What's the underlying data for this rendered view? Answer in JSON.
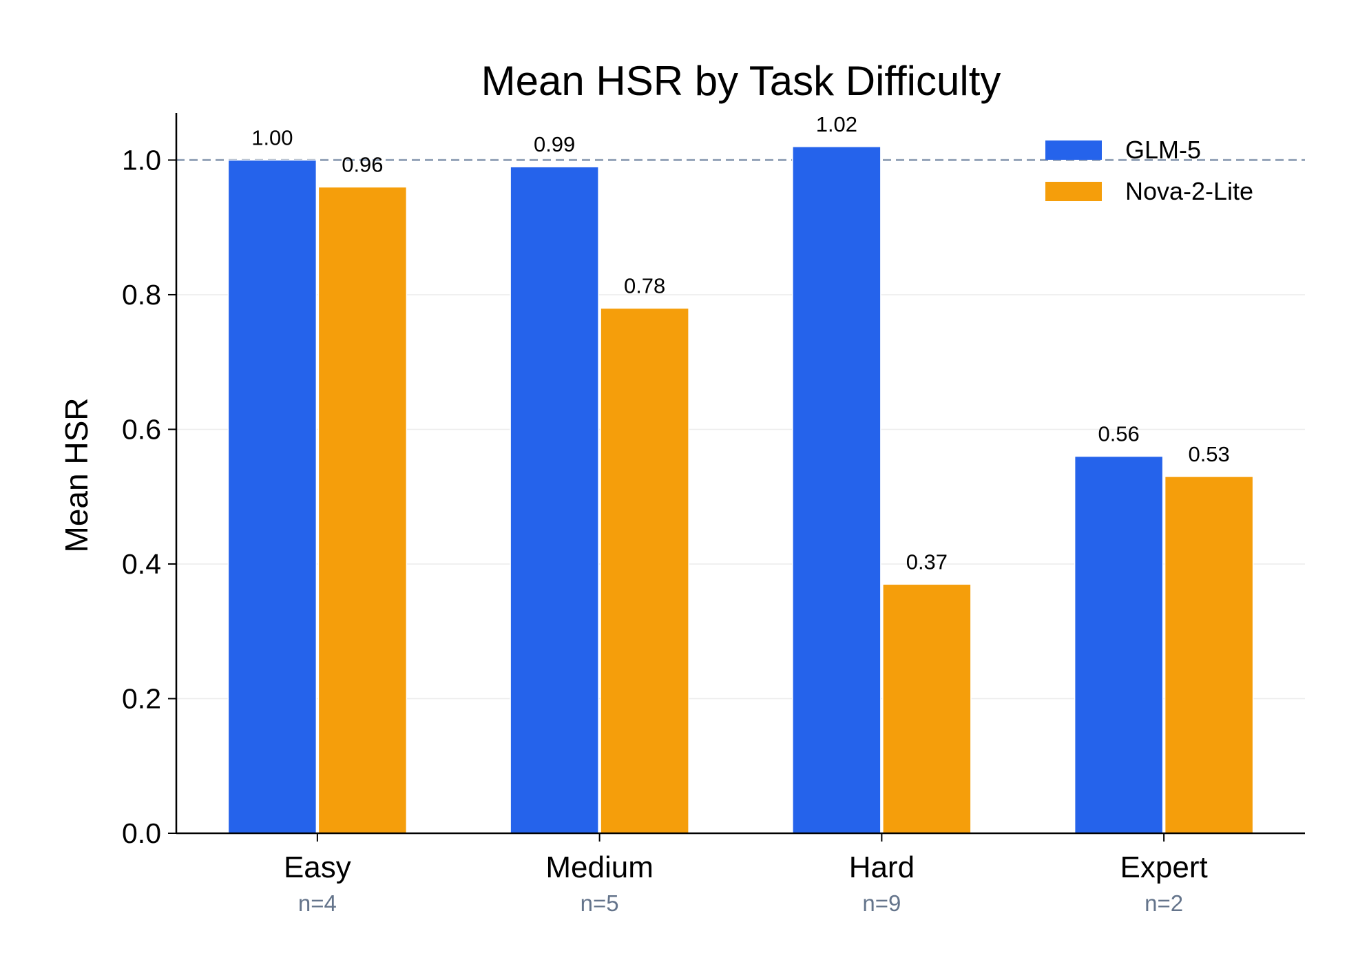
{
  "chart_data": {
    "type": "bar",
    "title": "Mean HSR by Task Difficulty",
    "xlabel": "",
    "ylabel": "Mean HSR",
    "ylim": [
      0,
      1.07
    ],
    "yticks": [
      0.0,
      0.2,
      0.4,
      0.6,
      0.8,
      1.0
    ],
    "ytick_labels": [
      "0.0",
      "0.2",
      "0.4",
      "0.6",
      "0.8",
      "1.0"
    ],
    "categories": [
      "Easy",
      "Medium",
      "Hard",
      "Expert"
    ],
    "category_sublabels": [
      "n=4",
      "n=5",
      "n=9",
      "n=2"
    ],
    "series": [
      {
        "name": "GLM-5",
        "color": "#2563eb",
        "values": [
          1.0,
          0.99,
          1.02,
          0.56
        ],
        "labels": [
          "1.00",
          "0.99",
          "1.02",
          "0.56"
        ]
      },
      {
        "name": "Nova-2-Lite",
        "color": "#f59e0b",
        "values": [
          0.96,
          0.78,
          0.37,
          0.53
        ],
        "labels": [
          "0.96",
          "0.78",
          "0.37",
          "0.53"
        ]
      }
    ],
    "reference_line": {
      "y": 1.0,
      "style": "dashed",
      "color": "#94a3b8"
    },
    "grid": "horizontal",
    "legend_position": "top-right"
  }
}
